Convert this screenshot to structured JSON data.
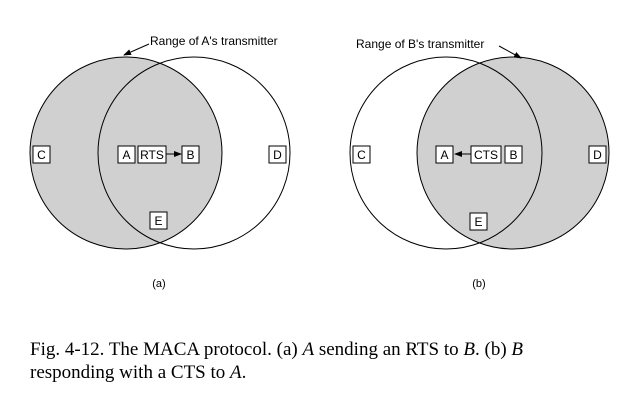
{
  "colors": {
    "shaded": "#d0d0d0",
    "stroke": "#000000",
    "background": "#ffffff"
  },
  "panel_a": {
    "range_label": "Range of A's transmitter",
    "nodes": {
      "c": "C",
      "a": "A",
      "b": "B",
      "d": "D",
      "e": "E"
    },
    "message": "RTS",
    "sublabel": "(a)"
  },
  "panel_b": {
    "range_label": "Range of B's transmitter",
    "nodes": {
      "c": "C",
      "a": "A",
      "b": "B",
      "d": "D",
      "e": "E"
    },
    "message": "CTS",
    "sublabel": "(b)"
  },
  "caption": {
    "prefix": "Fig. 4-12. The MACA protocol. (a) ",
    "a1": "A",
    "mid1": " sending an RTS to ",
    "b1": "B",
    "mid2": ".  (b) ",
    "b2": "B",
    "line2_start": "responding with a CTS to ",
    "a2": "A",
    "end": "."
  }
}
